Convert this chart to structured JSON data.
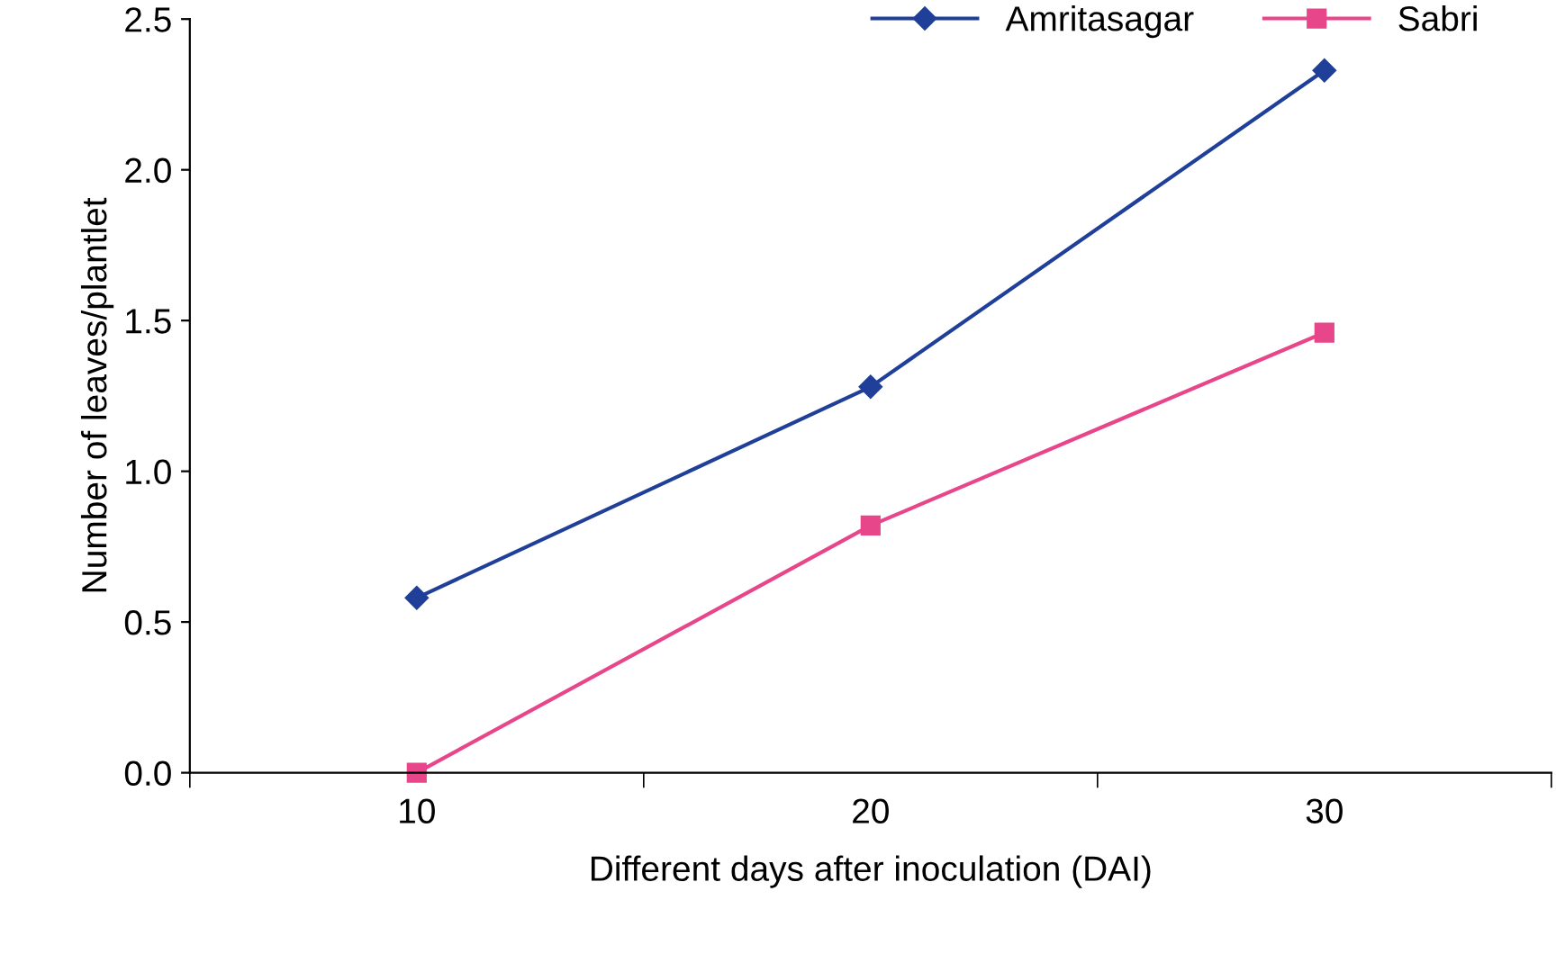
{
  "chart_data": {
    "type": "line",
    "xlabel": "Different days after inoculation (DAI)",
    "ylabel": "Number of leaves/plantlet",
    "categories": [
      "10",
      "20",
      "30"
    ],
    "series": [
      {
        "name": "Amritasagar",
        "color": "#1f3f99",
        "marker": "diamond",
        "values": [
          0.58,
          1.28,
          2.33
        ]
      },
      {
        "name": "Sabri",
        "color": "#e8468a",
        "marker": "square",
        "values": [
          0.0,
          0.82,
          1.46
        ]
      }
    ],
    "ylim": [
      0,
      2.5
    ],
    "yticks": [
      {
        "value": 0,
        "label": "0.0"
      },
      {
        "value": 0.5,
        "label": "0.5"
      },
      {
        "value": 1,
        "label": "1.0"
      },
      {
        "value": 1.5,
        "label": "1.5"
      },
      {
        "value": 2,
        "label": "2.0"
      },
      {
        "value": 2.5,
        "label": "2.5"
      }
    ],
    "grid": false,
    "legend": "top right",
    "line_style": "solid"
  }
}
